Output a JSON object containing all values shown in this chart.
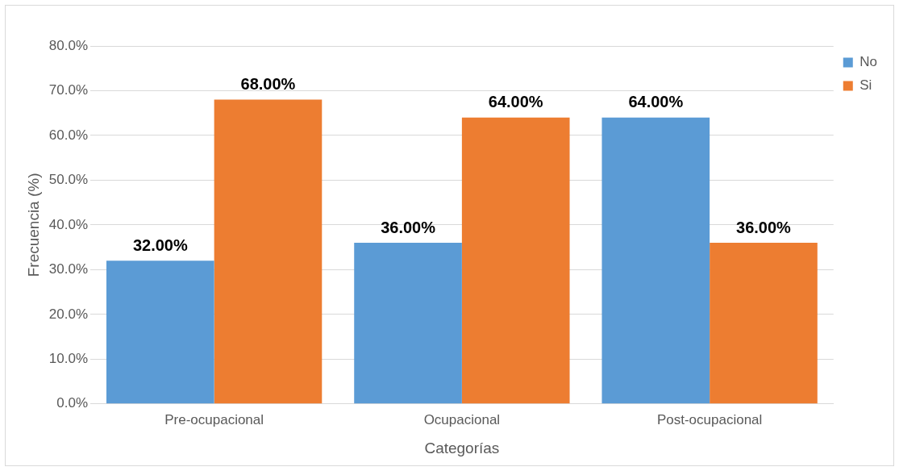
{
  "chart_data": {
    "type": "bar",
    "xlabel": "Categorías",
    "ylabel": "Frecuencia (%)",
    "categories": [
      "Pre-ocupacional",
      "Ocupacional",
      "Post-ocupacional"
    ],
    "series": [
      {
        "name": "No",
        "color": "#5b9bd5",
        "values": [
          32,
          36,
          64
        ],
        "value_labels": [
          "32.00%",
          "36.00%",
          "64.00%"
        ]
      },
      {
        "name": "Si",
        "color": "#ed7d31",
        "values": [
          68,
          64,
          36
        ],
        "value_labels": [
          "68.00%",
          "64.00%",
          "36.00%"
        ]
      }
    ],
    "ylim": [
      0,
      80
    ],
    "yticks": [
      {
        "value": 0,
        "label": "0.0%"
      },
      {
        "value": 10,
        "label": "10.0%"
      },
      {
        "value": 20,
        "label": "20.0%"
      },
      {
        "value": 30,
        "label": "30.0%"
      },
      {
        "value": 40,
        "label": "40.0%"
      },
      {
        "value": 50,
        "label": "50.0%"
      },
      {
        "value": 60,
        "label": "60.0%"
      },
      {
        "value": 70,
        "label": "70.0%"
      },
      {
        "value": 80,
        "label": "80.0%"
      }
    ],
    "grid": "y",
    "legend": "right"
  }
}
